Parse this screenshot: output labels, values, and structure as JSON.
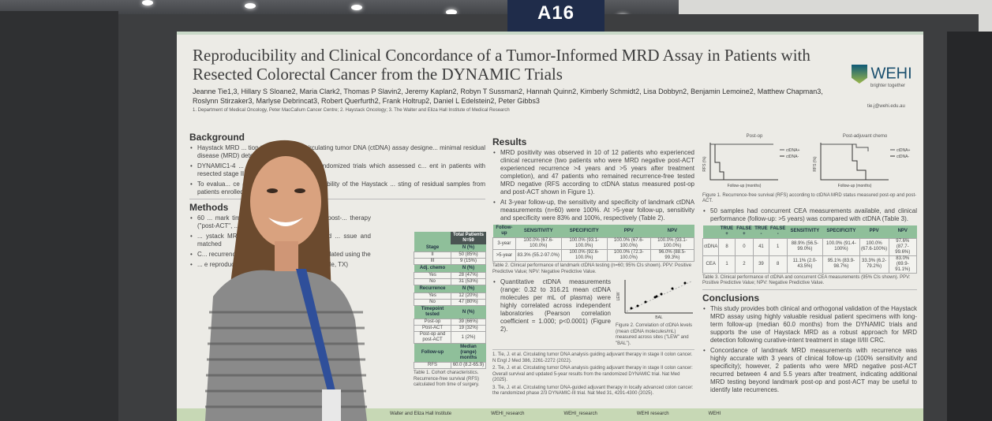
{
  "booth_sign": "A16",
  "poster": {
    "title": "Reproducibility and Clinical Concordance of a Tumor-Informed MRD Assay in Patients with Resected Colorectal Cancer from the DYNAMIC Trials",
    "authors": "Jeanne Tie1,3, Hillary S Sloane2, Maria Clark2, Thomas P Slavin2, Jeremy Kaplan2, Robyn T Sussman2, Hannah Quinn2, Kimberly Schmidt2, Lisa Dobbyn2, Benjamin Lemoine2, Matthew Chapman3, Roslynn Stirzaker3, Marlyse Debrincat3, Robert Querfurth2, Frank Holtrup2, Daniel L Edelstein2, Peter Gibbs3",
    "affiliations": "1. Department of Medical Oncology, Peter MacCallum Cancer Centre; 2. Haystack Oncology; 3. The Walter and Eliza Hall Institute of Medical Research",
    "logo": {
      "text": "WEHI",
      "tagline": "brighter together"
    },
    "email": "tie.j@wehi.edu.au",
    "background": {
      "heading": "Background",
      "bullets": [
        "Haystack MRD ... tion tumor-informed circulating tumor DNA (ctDNA) assay designe... minimal residual disease (MRD) detection.",
        "DYNAMIC1-4 ... re pivotal interventional randomized trials which assessed c... ent in patients with resected stage II and III colorectal c...",
        "To evalua... ce and inter-laboratory reproducibility of the Haystack ... sting of residual samples from patients enrolled in the DY..."
      ]
    },
    "methods": {
      "heading": "Methods",
      "bullets": [
        "60 ... mark timepoint after ... after surgery (\"post-... therapy (\"post-ACT\", ... with mature follow-up",
        "... ystack MRD, which ... r variants identified ... ssue and matched",
        "C... recurrence was ... EA measurements. ... culated using the",
        "... e reproducibility ... ratories: Quest ... Lewisville, TX)"
      ]
    },
    "table1": {
      "header": "Total Patients N=59",
      "rows": [
        [
          "Stage",
          "N (%)"
        ],
        [
          "II",
          "50 (85%)"
        ],
        [
          "III",
          "9 (15%)"
        ],
        [
          "Adj. chemo",
          "N (%)"
        ],
        [
          "Yes",
          "28 (47%)"
        ],
        [
          "No",
          "31 (53%)"
        ],
        [
          "Recurrence",
          "N (%)"
        ],
        [
          "Yes",
          "12 (20%)"
        ],
        [
          "No",
          "47 (80%)"
        ],
        [
          "Timepoint tested",
          "N (%)"
        ],
        [
          "Post-op",
          "39 (66%)"
        ],
        [
          "Post-ACT",
          "19 (32%)"
        ],
        [
          "Post-op and post-ACT",
          "1 (2%)"
        ],
        [
          "Follow-up",
          "Median (range) months"
        ],
        [
          "RFS",
          "60.0 (8.2-65.9)"
        ]
      ],
      "caption": "Table 1. Cohort characteristics. Recurrence-free survival (RFS) calculated from time of surgery."
    },
    "results": {
      "heading": "Results",
      "bullets": [
        "MRD positivity was observed in 10 of 12 patients who experienced clinical recurrence (two patients who were MRD negative post-ACT experienced recurrence >4 years and >5 years after treatment completion), and 47 patients who remained recurrence-free tested MRD negative (RFS according to ctDNA status measured post-op and post-ACT shown in Figure 1).",
        "At 3-year follow-up, the sensitivity and specificity of landmark ctDNA measurements (n=60) were 100%. At >5-year follow-up, sensitivity and specificity were 83% and 100%, respectively (Table 2).",
        "Quantitative ctDNA measurements (range: 0.32 to 316.21 mean ctDNA molecules per mL of plasma) were highly correlated across independent laboratories (Pearson correlation coefficient = 1.000; p<0.0001) (Figure 2)."
      ]
    },
    "table2": {
      "headers": [
        "Follow-up",
        "SENSITIVITY",
        "SPECIFICITY",
        "PPV",
        "NPV"
      ],
      "rows": [
        [
          "3-year",
          "100.0% (67.6-100.0%)",
          "100.0% (93.1-100.0%)",
          "100.0% (67.6-100.0%)",
          "100.0% (93.1-100.0%)"
        ],
        [
          ">5-year",
          "83.3% (55.2-97.0%)",
          "100.0% (92.6-100.0%)",
          "100.0% (72.3-100.0%)",
          "96.0% (88.5-99.3%)"
        ]
      ],
      "caption": "Table 2. Clinical performance of landmark ctDNA testing (n=60; 95% CIs shown). PPV: Positive Predictive Value; NPV: Negative Predictive Value."
    },
    "figure2": {
      "xlabel": "BAL",
      "ylabel": "LEW",
      "caption": "Figure 2. Correlation of ctDNA levels (mean ctDNA molecules/mL) measured across sites (\"LEW\" and \"BAL\")."
    },
    "references": [
      "1. Tie, J. et al. Circulating tumor DNA analysis guiding adjuvant therapy in stage II colon cancer. N Engl J Med 386, 2261-2272 (2022).",
      "2. Tie, J. et al. Circulating tumor DNA analysis guiding adjuvant therapy in stage II colon cancer: Overall survival and updated 5-year results from the randomized DYNAMIC trial. Nat Med (2025).",
      "3. Tie, J. et al. Circulating tumor DNA-guided adjuvant therapy in locally advanced colon cancer: the randomized phase 2/3 DYNAMIC-III trial. Nat Med 31, 4291-4300 (2025)."
    ],
    "figure1": {
      "panels": [
        "Post-op",
        "Post-adjuvant chemo"
      ],
      "legend": [
        "ctDNA+",
        "ctDNA-"
      ],
      "xlabel": "Follow-up (months)",
      "ylabel": "RFS (%)",
      "caption": "Figure 1. Recurrence-free survival (RFS) according to ctDNA MRD status measured post-op and post-ACT."
    },
    "cea_bullet": "50 samples had concurrent CEA measurements available, and clinical performance (follow-up: >5 years) was compared with ctDNA (Table 3).",
    "table3": {
      "headers": [
        "",
        "TRUE +",
        "FALSE +",
        "TRUE -",
        "FALSE -",
        "SENSITIVITY",
        "SPECIFICITY",
        "PPV",
        "NPV"
      ],
      "rows": [
        [
          "ctDNA",
          "8",
          "0",
          "41",
          "1",
          "88.9% (56.5-99.0%)",
          "100.0% (91.4-100%)",
          "100.0% (67.6-100%)",
          "97.6% (87.7-99.6%)"
        ],
        [
          "CEA",
          "1",
          "2",
          "39",
          "8",
          "11.1% (2.0-43.5%)",
          "95.1% (83.9-98.7%)",
          "33.3% (6.2-79.2%)",
          "83.0% (69.9-91.1%)"
        ]
      ],
      "caption": "Table 3. Clinical performance of ctDNA and concurrent CEA measurements (95% CIs shown). PPV: Positive Predictive Value; NPV: Negative Predictive Value."
    },
    "conclusions": {
      "heading": "Conclusions",
      "bullets": [
        "This study provides both clinical and orthogonal validation of the Haystack MRD assay using highly valuable residual patient specimens with long-term follow-up (median 60.0 months) from the DYNAMIC trials and supports the use of Haystack MRD as a robust approach for MRD detection following curative-intent treatment in stage II/III CRC.",
        "Concordance of landmark MRD measurements with recurrence was highly accurate with 3 years of clinical follow-up (100% sensitivity and specificity); however, 2 patients who were MRD negative post-ACT recurred between 4 and 5.5 years after treatment, indicating additional MRD testing beyond landmark post-op and post-ACT may be useful to identify late recurrences."
      ]
    },
    "footer": [
      "Walter and Eliza Hall Institute",
      "WEHI_research",
      "WEHI_research",
      "WEHI research",
      "WEHI"
    ]
  }
}
